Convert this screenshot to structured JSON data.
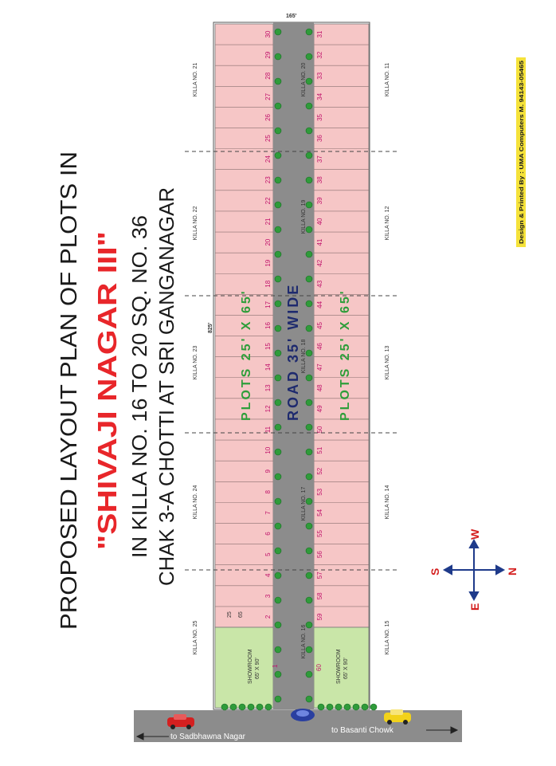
{
  "title": {
    "line1": "PROPOSED LAYOUT PLAN OF PLOTS IN",
    "line2": "\"SHIVAJI NAGAR III\"",
    "line3": "IN KILLA NO. 16 TO 20 SQ. NO. 36",
    "line4": "CHAK 3-A CHOTTI AT SRI GANGANAGAR"
  },
  "road_label": "ROAD 35' WIDE",
  "plots_label_top": "PLOTS 25' X 65'",
  "plots_label_bottom": "PLOTS 25' X 65'",
  "dim_width": "165'",
  "dim_length": "825'",
  "showroom": {
    "label": "SHOWROOM",
    "size": "65' X 90'"
  },
  "killa_left": [
    "KILLA NO. 21",
    "KILLA NO. 22",
    "KILLA NO. 23",
    "KILLA NO. 24",
    "KILLA NO. 25"
  ],
  "killa_right": [
    "KILLA NO. 11",
    "KILLA NO. 12",
    "KILLA NO. 13",
    "KILLA NO. 14",
    "KILLA NO. 15"
  ],
  "killa_road": [
    "KILLA NO. 20",
    "KILLA NO. 19",
    "KILLA NO. 18",
    "KILLA NO. 17",
    "KILLA NO. 16"
  ],
  "plots_left": [
    "30",
    "29",
    "28",
    "27",
    "26",
    "25",
    "24",
    "23",
    "22",
    "21",
    "20",
    "19",
    "18",
    "17",
    "16",
    "15",
    "14",
    "13",
    "12",
    "11",
    "10",
    "9",
    "8",
    "7",
    "6",
    "5",
    "4",
    "3",
    "2"
  ],
  "plots_right": [
    "31",
    "32",
    "33",
    "34",
    "35",
    "36",
    "37",
    "38",
    "39",
    "40",
    "41",
    "42",
    "43",
    "44",
    "45",
    "46",
    "47",
    "48",
    "49",
    "50",
    "51",
    "52",
    "53",
    "54",
    "55",
    "56",
    "57",
    "58",
    "59"
  ],
  "plot_1": "1",
  "plot_60": "60",
  "faint_marks": [
    "25",
    "65"
  ],
  "compass": {
    "north": "N",
    "south": "S",
    "east": "E",
    "west": "W"
  },
  "road_to_left": "to Sadbhawna Nagar",
  "road_to_right": "to Basanti Chowk",
  "credit": "Design & Printed By : UMA Computers M. 94143-05465",
  "colors": {
    "plot_fill": "#f6c6c6",
    "green": "#c9e6a8",
    "road": "#8c8c8c",
    "title_red": "#e8262a",
    "label_green": "#2e9e3a",
    "credit_bg": "#f5e23a"
  }
}
